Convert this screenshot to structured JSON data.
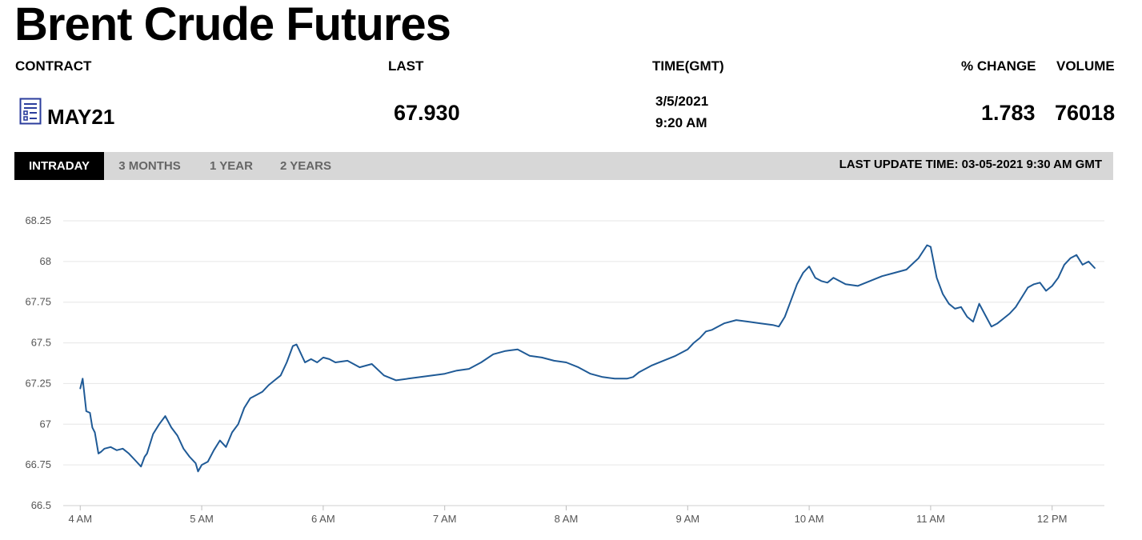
{
  "page": {
    "title": "Brent Crude Futures"
  },
  "headers": {
    "contract": "CONTRACT",
    "last": "LAST",
    "time": "TIME(GMT)",
    "change": "% CHANGE",
    "volume": "VOLUME"
  },
  "quote": {
    "contract": "MAY21",
    "last": "67.930",
    "date": "3/5/2021",
    "time": "9:20 AM",
    "change": "1.783",
    "volume": "76018",
    "icon": "document-chart-icon"
  },
  "tabs": [
    {
      "label": "INTRADAY",
      "active": true
    },
    {
      "label": "3 MONTHS",
      "active": false
    },
    {
      "label": "1 YEAR",
      "active": false
    },
    {
      "label": "2 YEARS",
      "active": false
    }
  ],
  "last_update": "LAST UPDATE TIME: 03-05-2021 9:30 AM GMT",
  "colors": {
    "line": "#1f5a96",
    "grid": "#e6e6e6",
    "icon": "#2b3d9c"
  },
  "chart_data": {
    "type": "line",
    "title": "",
    "xlabel": "",
    "ylabel": "",
    "x_ticks": [
      {
        "label": "4 AM",
        "h": 4
      },
      {
        "label": "5 AM",
        "h": 5
      },
      {
        "label": "6 AM",
        "h": 6
      },
      {
        "label": "7 AM",
        "h": 7
      },
      {
        "label": "8 AM",
        "h": 8
      },
      {
        "label": "9 AM",
        "h": 9
      },
      {
        "label": "10 AM",
        "h": 10
      },
      {
        "label": "11 AM",
        "h": 11
      },
      {
        "label": "12 PM",
        "h": 12
      }
    ],
    "xlim": [
      3.86,
      12.43
    ],
    "y_ticks": [
      66.5,
      66.75,
      67,
      67.25,
      67.5,
      67.75,
      68,
      68.25
    ],
    "ylim": [
      66.5,
      68.25
    ],
    "grid": true,
    "series": [
      {
        "x": [
          4.0,
          4.02,
          4.05,
          4.08,
          4.1,
          4.12,
          4.15,
          4.17,
          4.2,
          4.25,
          4.3,
          4.35,
          4.4,
          4.45,
          4.5,
          4.53,
          4.55,
          4.6,
          4.65,
          4.7,
          4.75,
          4.8,
          4.85,
          4.9,
          4.95,
          4.97,
          5.0,
          5.05,
          5.1,
          5.15,
          5.2,
          5.25,
          5.3,
          5.35,
          5.4,
          5.45,
          5.5,
          5.55,
          5.6,
          5.65,
          5.7,
          5.75,
          5.78,
          5.8,
          5.85,
          5.9,
          5.95,
          6.0,
          6.05,
          6.1,
          6.2,
          6.3,
          6.4,
          6.5,
          6.6,
          6.7,
          6.8,
          6.9,
          7.0,
          7.1,
          7.2,
          7.3,
          7.4,
          7.5,
          7.6,
          7.7,
          7.8,
          7.9,
          8.0,
          8.1,
          8.2,
          8.3,
          8.4,
          8.5,
          8.55,
          8.6,
          8.7,
          8.8,
          8.9,
          9.0,
          9.05,
          9.1,
          9.15,
          9.2,
          9.25,
          9.3,
          9.4,
          9.5,
          9.6,
          9.7,
          9.75,
          9.8,
          9.85,
          9.9,
          9.95,
          10.0,
          10.05,
          10.1,
          10.15,
          10.2,
          10.3,
          10.4,
          10.5,
          10.6,
          10.7,
          10.8,
          10.9,
          10.97,
          11.0,
          11.05,
          11.1,
          11.15,
          11.2,
          11.25,
          11.3,
          11.35,
          11.4,
          11.45,
          11.5,
          11.55,
          11.6,
          11.65,
          11.7,
          11.75,
          11.8,
          11.85,
          11.9,
          11.95,
          12.0,
          12.05,
          12.1,
          12.15,
          12.2,
          12.25,
          12.3,
          12.35
        ],
        "y": [
          67.22,
          67.28,
          67.08,
          67.07,
          66.98,
          66.95,
          66.82,
          66.83,
          66.85,
          66.86,
          66.84,
          66.85,
          66.82,
          66.78,
          66.74,
          66.8,
          66.82,
          66.94,
          67.0,
          67.05,
          66.98,
          66.93,
          66.85,
          66.8,
          66.76,
          66.71,
          66.75,
          66.77,
          66.84,
          66.9,
          66.86,
          66.95,
          67.0,
          67.1,
          67.16,
          67.18,
          67.2,
          67.24,
          67.27,
          67.3,
          67.38,
          67.48,
          67.49,
          67.46,
          67.38,
          67.4,
          67.38,
          67.41,
          67.4,
          67.38,
          67.39,
          67.35,
          67.37,
          67.3,
          67.27,
          67.28,
          67.29,
          67.3,
          67.31,
          67.33,
          67.34,
          67.38,
          67.43,
          67.45,
          67.46,
          67.42,
          67.41,
          67.39,
          67.38,
          67.35,
          67.31,
          67.29,
          67.28,
          67.28,
          67.29,
          67.32,
          67.36,
          67.39,
          67.42,
          67.46,
          67.5,
          67.53,
          67.57,
          67.58,
          67.6,
          67.62,
          67.64,
          67.63,
          67.62,
          67.61,
          67.6,
          67.66,
          67.76,
          67.86,
          67.93,
          67.97,
          67.9,
          67.88,
          67.87,
          67.9,
          67.86,
          67.85,
          67.88,
          67.91,
          67.93,
          67.95,
          68.02,
          68.1,
          68.09,
          67.9,
          67.8,
          67.74,
          67.71,
          67.72,
          67.66,
          67.63,
          67.74,
          67.67,
          67.6,
          67.62,
          67.65,
          67.68,
          67.72,
          67.78,
          67.84,
          67.86,
          67.87,
          67.82,
          67.85,
          67.9,
          67.98,
          68.02,
          68.04,
          67.98,
          68.0,
          67.96
        ]
      }
    ]
  }
}
